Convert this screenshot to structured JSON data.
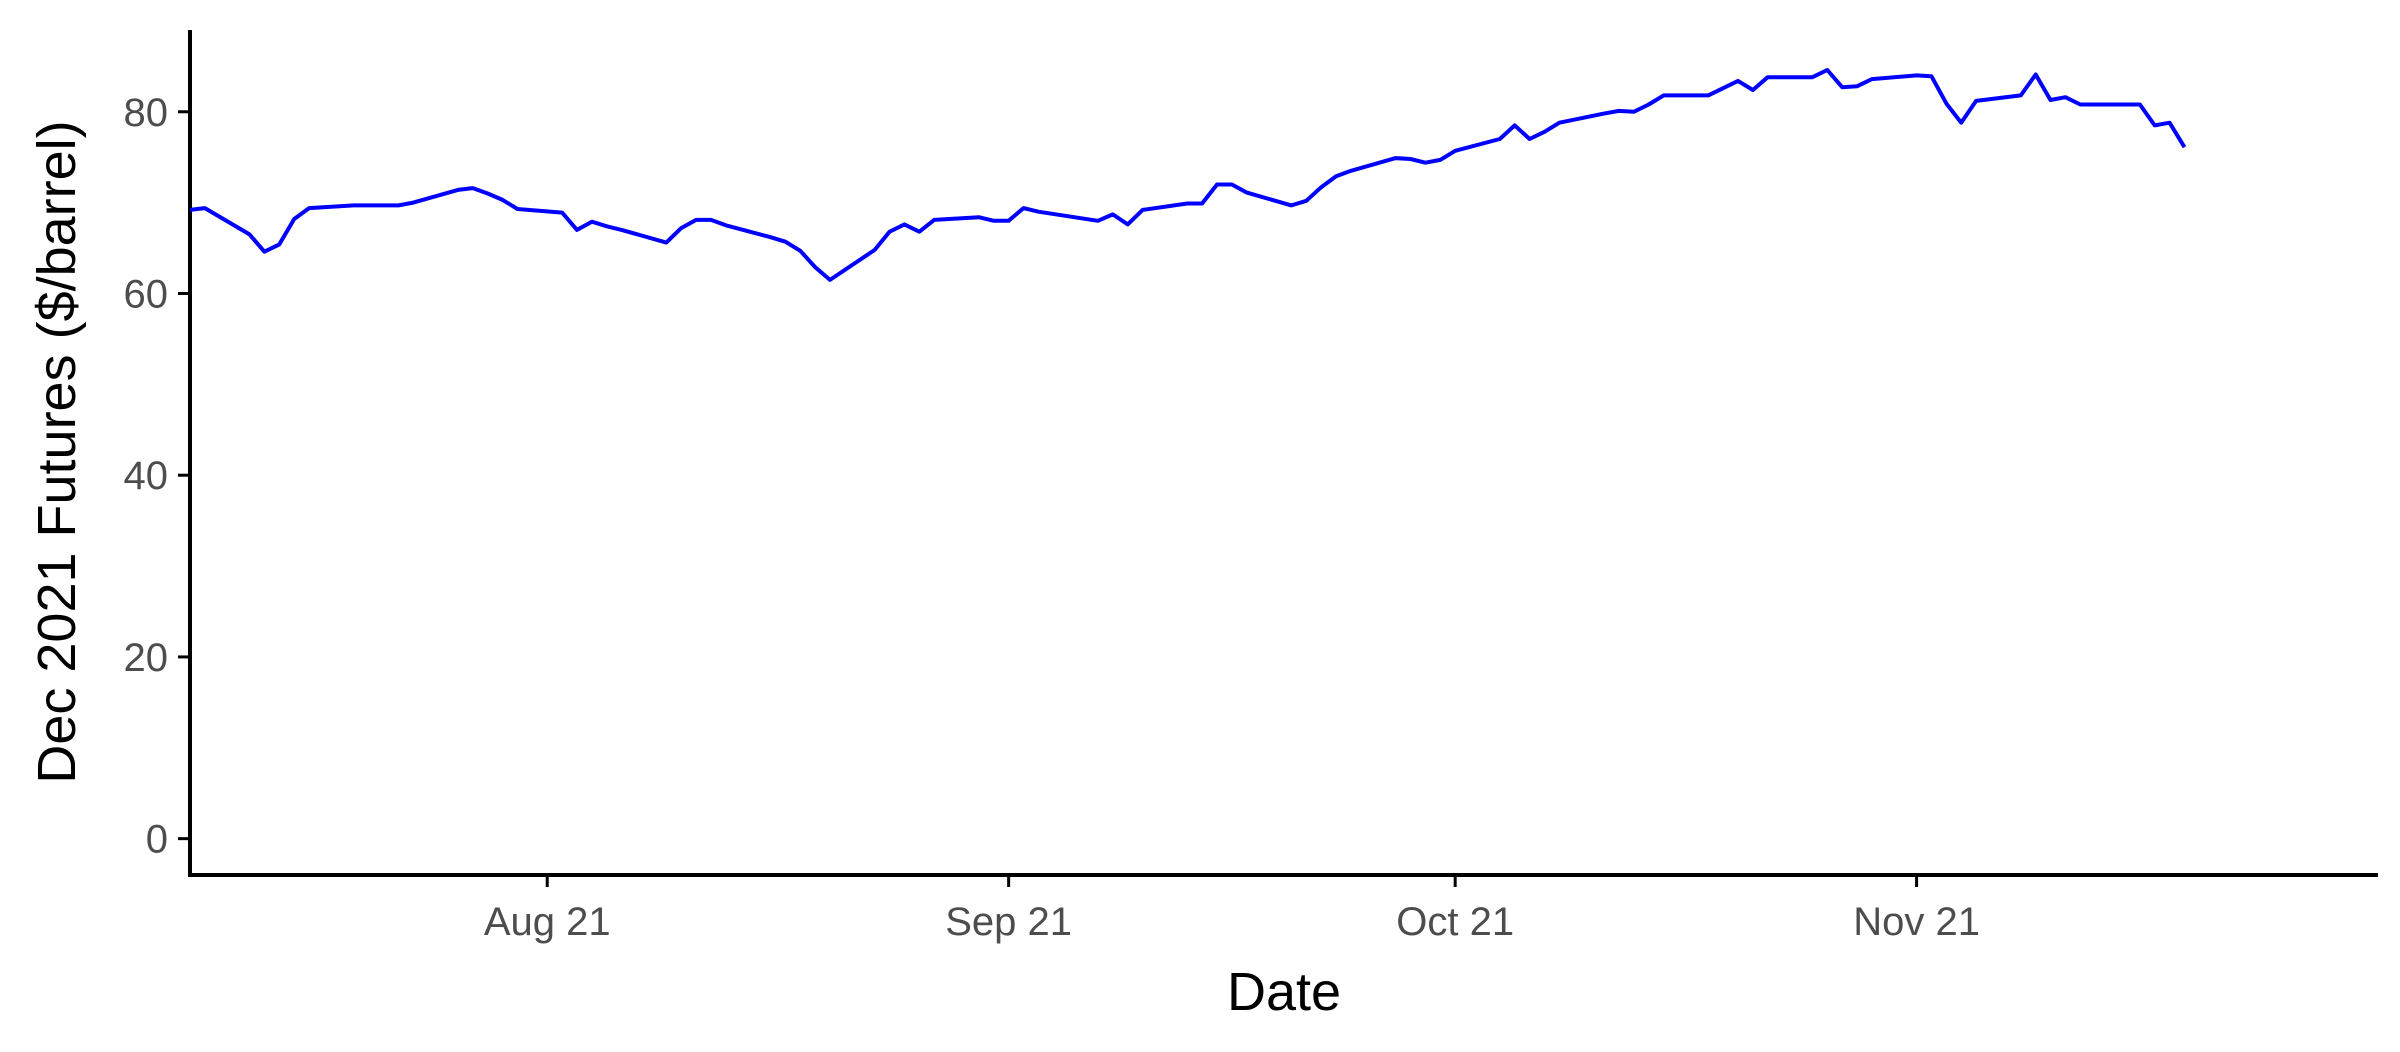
{
  "chart_data": {
    "type": "line",
    "title": "",
    "xlabel": "Date",
    "ylabel": "Dec 2021 Futures ($/barrel)",
    "x_ticks": [
      {
        "date": "2021-08-01",
        "label": "Aug 21"
      },
      {
        "date": "2021-09-01",
        "label": "Sep 21"
      },
      {
        "date": "2021-10-01",
        "label": "Oct 21"
      },
      {
        "date": "2021-11-01",
        "label": "Nov 21"
      }
    ],
    "y_ticks": [
      0,
      20,
      40,
      60,
      80
    ],
    "xlim": [
      "2021-07-08",
      "2021-12-02"
    ],
    "ylim": [
      -4,
      89
    ],
    "grid": false,
    "legend": "none",
    "line_color": "#0000ff",
    "series": [
      {
        "x": [
          "2021-07-08",
          "2021-07-09",
          "2021-07-12",
          "2021-07-13",
          "2021-07-14",
          "2021-07-15",
          "2021-07-16",
          "2021-07-19",
          "2021-07-20",
          "2021-07-21",
          "2021-07-22",
          "2021-07-23",
          "2021-07-26",
          "2021-07-27",
          "2021-07-28",
          "2021-07-29",
          "2021-07-30",
          "2021-08-02",
          "2021-08-03",
          "2021-08-04",
          "2021-08-05",
          "2021-08-06",
          "2021-08-09",
          "2021-08-10",
          "2021-08-11",
          "2021-08-12",
          "2021-08-13",
          "2021-08-16",
          "2021-08-17",
          "2021-08-18",
          "2021-08-19",
          "2021-08-20",
          "2021-08-23",
          "2021-08-24",
          "2021-08-25",
          "2021-08-26",
          "2021-08-27",
          "2021-08-30",
          "2021-08-31",
          "2021-09-01",
          "2021-09-02",
          "2021-09-03",
          "2021-09-07",
          "2021-09-08",
          "2021-09-09",
          "2021-09-10",
          "2021-09-13",
          "2021-09-14",
          "2021-09-15",
          "2021-09-16",
          "2021-09-17",
          "2021-09-20",
          "2021-09-21",
          "2021-09-22",
          "2021-09-23",
          "2021-09-24",
          "2021-09-27",
          "2021-09-28",
          "2021-09-29",
          "2021-09-30",
          "2021-10-01",
          "2021-10-04",
          "2021-10-05",
          "2021-10-06",
          "2021-10-07",
          "2021-10-08",
          "2021-10-11",
          "2021-10-12",
          "2021-10-13",
          "2021-10-14",
          "2021-10-15",
          "2021-10-18",
          "2021-10-19",
          "2021-10-20",
          "2021-10-21",
          "2021-10-22",
          "2021-10-25",
          "2021-10-26",
          "2021-10-27",
          "2021-10-28",
          "2021-10-29",
          "2021-11-01",
          "2021-11-02",
          "2021-11-03",
          "2021-11-04",
          "2021-11-05",
          "2021-11-08",
          "2021-11-09",
          "2021-11-10",
          "2021-11-11",
          "2021-11-12",
          "2021-11-15",
          "2021-11-16",
          "2021-11-17",
          "2021-11-18",
          "2021-11-19"
        ],
        "y": [
          69.2,
          69.4,
          66.5,
          64.6,
          65.4,
          68.2,
          69.4,
          69.7,
          69.7,
          69.7,
          69.7,
          70.0,
          71.4,
          71.6,
          71.0,
          70.3,
          69.3,
          68.9,
          67.0,
          67.9,
          67.4,
          67.0,
          65.6,
          67.2,
          68.1,
          68.1,
          67.5,
          66.2,
          65.7,
          64.7,
          62.9,
          61.5,
          64.8,
          66.8,
          67.6,
          66.8,
          68.1,
          68.4,
          68.0,
          68.0,
          69.4,
          69.0,
          68.0,
          68.7,
          67.6,
          69.2,
          69.9,
          69.9,
          72.0,
          72.0,
          71.1,
          69.7,
          70.2,
          71.7,
          72.9,
          73.5,
          74.9,
          74.8,
          74.4,
          74.7,
          75.7,
          77.0,
          78.5,
          77.0,
          77.8,
          78.8,
          79.8,
          80.1,
          80.0,
          80.8,
          81.8,
          81.8,
          82.6,
          83.4,
          82.4,
          83.8,
          83.8,
          84.6,
          82.7,
          82.8,
          83.6,
          84.0,
          83.9,
          80.9,
          78.8,
          81.2,
          81.8,
          84.1,
          81.3,
          81.6,
          80.8,
          80.8,
          80.8,
          78.5,
          78.8,
          76.1
        ]
      }
    ]
  }
}
